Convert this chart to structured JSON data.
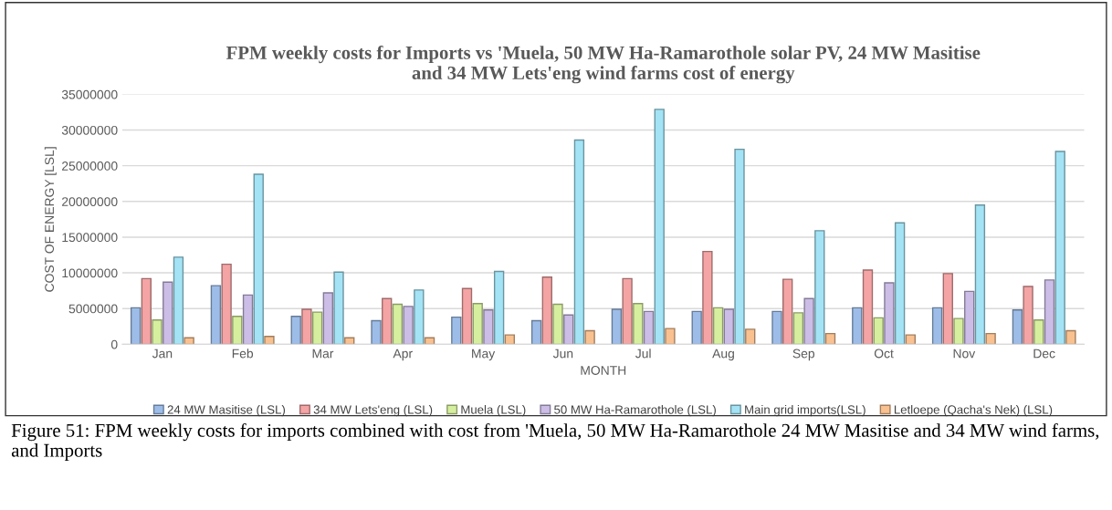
{
  "chart_data": {
    "type": "bar",
    "title": "FPM weekly costs for Imports vs 'Muela, 50 MW Ha-Ramarothole solar PV, 24 MW Masitise\nand 34 MW Lets'eng wind farms cost of energy",
    "xlabel": "MONTH",
    "ylabel": "COST OF ENERGY [LSL]",
    "categories": [
      "Jan",
      "Feb",
      "Mar",
      "Apr",
      "May",
      "Jun",
      "Jul",
      "Aug",
      "Sep",
      "Oct",
      "Nov",
      "Dec"
    ],
    "series": [
      {
        "name": "24 MW Masitise (LSL)",
        "color": "#9dbde8",
        "values": [
          5100000,
          8200000,
          3900000,
          3300000,
          3800000,
          3300000,
          4900000,
          4600000,
          4600000,
          5100000,
          5100000,
          4800000
        ]
      },
      {
        "name": "34 MW Lets'eng (LSL)",
        "color": "#f4a4a4",
        "values": [
          9200000,
          11200000,
          4900000,
          6400000,
          7800000,
          9400000,
          9200000,
          13000000,
          9100000,
          10400000,
          9900000,
          8100000
        ]
      },
      {
        "name": "Muela (LSL)",
        "color": "#d6ef9e",
        "values": [
          3400000,
          3900000,
          4500000,
          5600000,
          5700000,
          5600000,
          5700000,
          5100000,
          4400000,
          3700000,
          3600000,
          3400000
        ]
      },
      {
        "name": "50 MW Ha-Ramarothole (LSL)",
        "color": "#cbbde6",
        "values": [
          8700000,
          6900000,
          7200000,
          5300000,
          4800000,
          4100000,
          4600000,
          4900000,
          6400000,
          8600000,
          7400000,
          9000000
        ]
      },
      {
        "name": "Main grid imports(LSL)",
        "color": "#a3e3f5",
        "values": [
          12200000,
          23800000,
          10100000,
          7600000,
          10200000,
          28600000,
          32900000,
          27300000,
          15900000,
          17000000,
          19500000,
          27000000
        ]
      },
      {
        "name": "Letloepe (Qacha's Nek) (LSL)",
        "color": "#f9c18f",
        "values": [
          900000,
          1100000,
          900000,
          900000,
          1300000,
          1900000,
          2200000,
          2100000,
          1500000,
          1300000,
          1500000,
          1900000
        ]
      }
    ],
    "ylim": [
      0,
      35000000
    ],
    "yticks": [
      0,
      5000000,
      10000000,
      15000000,
      20000000,
      25000000,
      30000000,
      35000000
    ],
    "grid": "y",
    "legend": "bottom",
    "annotations": [
      "Figure 51: FPM weekly costs for imports combined with cost from 'Muela, 50 MW Ha-Ramarothole 24 MW Masitise and 34 MW wind farms, and Imports"
    ]
  }
}
